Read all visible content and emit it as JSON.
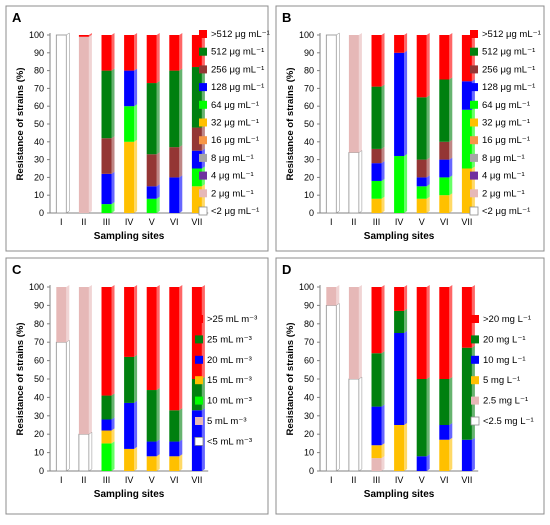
{
  "figure": {
    "panels_meta": [
      {
        "letter": "A",
        "ylabel": "Resistance of strains (%)",
        "xlabel": "Sampling sites"
      },
      {
        "letter": "B",
        "ylabel": "Resistance of strains (%)",
        "xlabel": "Sampling sites"
      },
      {
        "letter": "C",
        "ylabel": "Resistance of strains (%)",
        "xlabel": "Sampling sites"
      },
      {
        "letter": "D",
        "ylabel": "Resistance of strains (%)",
        "xlabel": "Sampling sites"
      }
    ]
  },
  "chart_data": [
    {
      "type": "bar",
      "stacked": true,
      "panel": "A",
      "categories": [
        "I",
        "II",
        "III",
        "IV",
        "V",
        "VI",
        "VII"
      ],
      "ylim": [
        0,
        100
      ],
      "yticks": [
        0,
        10,
        20,
        30,
        40,
        50,
        60,
        70,
        80,
        90,
        100
      ],
      "xlabel": "Sampling sites",
      "ylabel": "Resistance of strains (%)",
      "legend_position": "right",
      "series": [
        {
          "name": "<2 μg mL⁻¹",
          "color": "#ffffff",
          "values": [
            100,
            0,
            0,
            0,
            0,
            0,
            0
          ]
        },
        {
          "name": "2 μg mL⁻¹",
          "color": "#e6b8b7",
          "values": [
            0,
            99,
            0,
            0,
            0,
            0,
            0
          ]
        },
        {
          "name": "4 μg mL⁻¹",
          "color": "#7030a0",
          "values": [
            0,
            0,
            0,
            0,
            0,
            0,
            0
          ]
        },
        {
          "name": "8 μg mL⁻¹",
          "color": "#a6a6a6",
          "values": [
            0,
            0,
            0,
            0,
            0,
            0,
            0
          ]
        },
        {
          "name": "16 μg mL⁻¹",
          "color": "#f79646",
          "values": [
            0,
            0,
            0,
            0,
            0,
            0,
            0
          ]
        },
        {
          "name": "32 μg mL⁻¹",
          "color": "#ffc000",
          "values": [
            0,
            0,
            0,
            40,
            0,
            0,
            15
          ]
        },
        {
          "name": "64 μg mL⁻¹",
          "color": "#00ff00",
          "values": [
            0,
            0,
            5,
            20,
            8,
            0,
            10
          ]
        },
        {
          "name": "128 μg mL⁻¹",
          "color": "#0000ff",
          "values": [
            0,
            0,
            17,
            20,
            7,
            20,
            10
          ]
        },
        {
          "name": "256 μg mL⁻¹",
          "color": "#943634",
          "values": [
            0,
            0,
            20,
            0,
            18,
            17,
            13
          ]
        },
        {
          "name": "512 μg mL⁻¹",
          "color": "#00800f",
          "values": [
            0,
            0,
            38,
            0,
            40,
            43,
            34
          ]
        },
        {
          "name": ">512 μg mL⁻¹",
          "color": "#ff0000",
          "values": [
            0,
            1,
            20,
            20,
            27,
            20,
            18
          ]
        }
      ]
    },
    {
      "type": "bar",
      "stacked": true,
      "panel": "B",
      "categories": [
        "I",
        "II",
        "III",
        "IV",
        "V",
        "VI",
        "VII"
      ],
      "ylim": [
        0,
        100
      ],
      "yticks": [
        0,
        10,
        20,
        30,
        40,
        50,
        60,
        70,
        80,
        90,
        100
      ],
      "xlabel": "Sampling sites",
      "ylabel": "Resistance of strains (%)",
      "legend_position": "right",
      "series": [
        {
          "name": "<2 μg mL⁻¹",
          "color": "#ffffff",
          "values": [
            100,
            34,
            0,
            0,
            0,
            0,
            0
          ]
        },
        {
          "name": "2 μg mL⁻¹",
          "color": "#e6b8b7",
          "values": [
            0,
            66,
            0,
            0,
            0,
            0,
            0
          ]
        },
        {
          "name": "4 μg mL⁻¹",
          "color": "#7030a0",
          "values": [
            0,
            0,
            0,
            0,
            0,
            0,
            0
          ]
        },
        {
          "name": "8 μg mL⁻¹",
          "color": "#a6a6a6",
          "values": [
            0,
            0,
            0,
            0,
            0,
            0,
            0
          ]
        },
        {
          "name": "16 μg mL⁻¹",
          "color": "#f79646",
          "values": [
            0,
            0,
            0,
            0,
            0,
            0,
            0
          ]
        },
        {
          "name": "32 μg mL⁻¹",
          "color": "#ffc000",
          "values": [
            0,
            0,
            8,
            0,
            8,
            10,
            25
          ]
        },
        {
          "name": "64 μg mL⁻¹",
          "color": "#00ff00",
          "values": [
            0,
            0,
            10,
            32,
            7,
            10,
            33
          ]
        },
        {
          "name": "128 μg mL⁻¹",
          "color": "#0000ff",
          "values": [
            0,
            0,
            10,
            58,
            5,
            10,
            16
          ]
        },
        {
          "name": "256 μg mL⁻¹",
          "color": "#943634",
          "values": [
            0,
            0,
            8,
            0,
            10,
            10,
            0
          ]
        },
        {
          "name": "512 μg mL⁻¹",
          "color": "#00800f",
          "values": [
            0,
            0,
            35,
            0,
            35,
            35,
            0
          ]
        },
        {
          "name": ">512 μg mL⁻¹",
          "color": "#ff0000",
          "values": [
            0,
            0,
            29,
            10,
            35,
            25,
            26
          ]
        }
      ]
    },
    {
      "type": "bar",
      "stacked": true,
      "panel": "C",
      "categories": [
        "I",
        "II",
        "III",
        "IV",
        "V",
        "VI",
        "VII"
      ],
      "ylim": [
        0,
        100
      ],
      "yticks": [
        0,
        10,
        20,
        30,
        40,
        50,
        60,
        70,
        80,
        90,
        100
      ],
      "xlabel": "Sampling sites",
      "ylabel": "Resistance of strains (%)",
      "legend_position": "right",
      "series": [
        {
          "name": "<5 mL m⁻³",
          "color": "#ffffff",
          "values": [
            70,
            20,
            0,
            0,
            0,
            0,
            0
          ]
        },
        {
          "name": "5 mL m⁻³",
          "color": "#e6b8b7",
          "values": [
            30,
            80,
            0,
            0,
            0,
            0,
            0
          ]
        },
        {
          "name": "10 mL m⁻³",
          "color": "#00ff00",
          "values": [
            0,
            0,
            15,
            0,
            0,
            0,
            0
          ]
        },
        {
          "name": "15 mL m⁻³",
          "color": "#ffc000",
          "values": [
            0,
            0,
            7,
            12,
            8,
            8,
            0
          ]
        },
        {
          "name": "20 mL m⁻³",
          "color": "#0000ff",
          "values": [
            0,
            0,
            6,
            25,
            8,
            8,
            33
          ]
        },
        {
          "name": "25 mL m⁻³",
          "color": "#00800f",
          "values": [
            0,
            0,
            13,
            25,
            28,
            17,
            17
          ]
        },
        {
          "name": ">25 mL m⁻³",
          "color": "#ff0000",
          "values": [
            0,
            0,
            59,
            38,
            56,
            67,
            50
          ]
        }
      ]
    },
    {
      "type": "bar",
      "stacked": true,
      "panel": "D",
      "categories": [
        "I",
        "II",
        "III",
        "IV",
        "V",
        "VI",
        "VII"
      ],
      "ylim": [
        0,
        100
      ],
      "yticks": [
        0,
        10,
        20,
        30,
        40,
        50,
        60,
        70,
        80,
        90,
        100
      ],
      "xlabel": "Sampling sites",
      "ylabel": "Resistance of strains (%)",
      "legend_position": "right",
      "series": [
        {
          "name": "<2.5 mg L⁻¹",
          "color": "#ffffff",
          "values": [
            90,
            50,
            0,
            0,
            0,
            0,
            0
          ]
        },
        {
          "name": "2.5 mg L⁻¹",
          "color": "#e6b8b7",
          "values": [
            10,
            50,
            7,
            0,
            0,
            0,
            0
          ]
        },
        {
          "name": "5 mg L⁻¹",
          "color": "#ffc000",
          "values": [
            0,
            0,
            7,
            25,
            0,
            17,
            0
          ]
        },
        {
          "name": "10 mg L⁻¹",
          "color": "#0000ff",
          "values": [
            0,
            0,
            21,
            50,
            8,
            8,
            17
          ]
        },
        {
          "name": "20 mg L⁻¹",
          "color": "#00800f",
          "values": [
            0,
            0,
            29,
            12,
            42,
            25,
            50
          ]
        },
        {
          "name": ">20 mg L⁻¹",
          "color": "#ff0000",
          "values": [
            0,
            0,
            36,
            13,
            50,
            50,
            33
          ]
        }
      ]
    }
  ]
}
